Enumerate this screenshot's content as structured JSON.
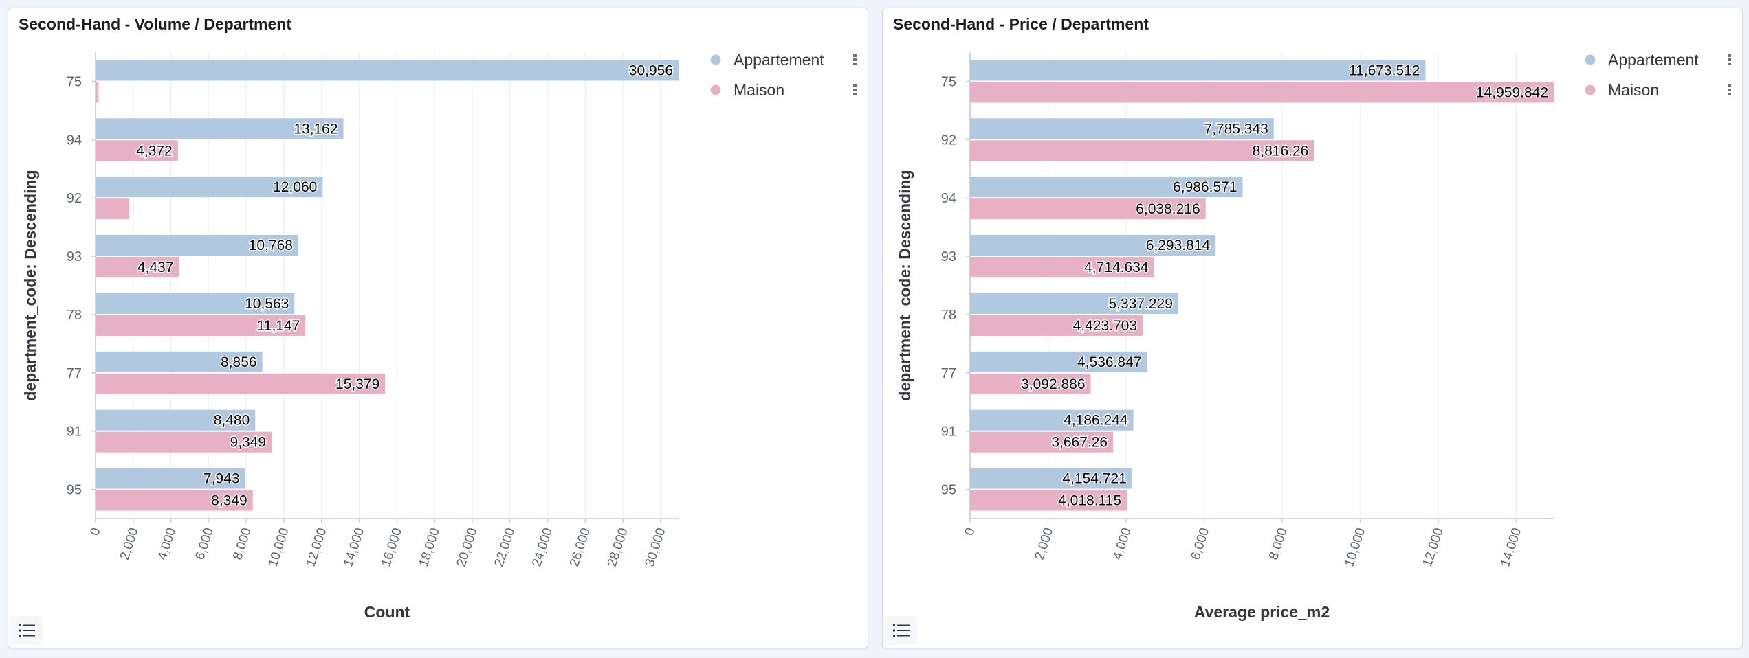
{
  "colors": {
    "appartement": "#b0c9e0",
    "maison": "#e7b0c5",
    "grid": "#eef0f3",
    "axis": "#c8ccd3",
    "tick_text": "#5f6672",
    "label_text": "#343741"
  },
  "icons": {
    "legend_toggle": "list-icon",
    "legend_menu": "vertical-dots-icon"
  },
  "charts": [
    {
      "panel_title": "Second-Hand - Volume / Department",
      "chart_data": {
        "type": "bar",
        "orientation": "horizontal",
        "title": "Second-Hand - Volume / Department",
        "xlabel": "Count",
        "ylabel": "department_code: Descending",
        "categories": [
          "75",
          "94",
          "92",
          "93",
          "78",
          "77",
          "91",
          "95"
        ],
        "series": [
          {
            "name": "Appartement",
            "color": "#b0c9e0",
            "values": [
              30956,
              13162,
              12060,
              10768,
              10563,
              8856,
              8480,
              7943
            ],
            "labels": [
              "30,956",
              "13,162",
              "12,060",
              "10,768",
              "10,563",
              "8,856",
              "8,480",
              "7,943"
            ]
          },
          {
            "name": "Maison",
            "color": "#e7b0c5",
            "values": [
              160,
              4372,
              1800,
              4437,
              11147,
              15379,
              9349,
              8349
            ],
            "labels": [
              "",
              "4,372",
              "",
              "4,437",
              "11,147",
              "15,379",
              "9,349",
              "8,349"
            ]
          }
        ],
        "xlim": [
          0,
          30956
        ],
        "xticks": [
          0,
          2000,
          4000,
          6000,
          8000,
          10000,
          12000,
          14000,
          16000,
          18000,
          20000,
          22000,
          24000,
          26000,
          28000,
          30000
        ],
        "xtick_labels": [
          "0",
          "2,000",
          "4,000",
          "6,000",
          "8,000",
          "10,000",
          "12,000",
          "14,000",
          "16,000",
          "18,000",
          "20,000",
          "22,000",
          "24,000",
          "26,000",
          "28,000",
          "30,000"
        ],
        "grid": true,
        "legend_position": "top-right"
      }
    },
    {
      "panel_title": "Second-Hand - Price / Department",
      "chart_data": {
        "type": "bar",
        "orientation": "horizontal",
        "title": "Second-Hand - Price / Department",
        "xlabel": "Average price_m2",
        "ylabel": "department_code: Descending",
        "categories": [
          "75",
          "92",
          "94",
          "93",
          "78",
          "77",
          "91",
          "95"
        ],
        "series": [
          {
            "name": "Appartement",
            "color": "#b0c9e0",
            "values": [
              11673.512,
              7785.343,
              6986.571,
              6293.814,
              5337.229,
              4536.847,
              4186.244,
              4154.721
            ],
            "labels": [
              "11,673.512",
              "7,785.343",
              "6,986.571",
              "6,293.814",
              "5,337.229",
              "4,536.847",
              "4,186.244",
              "4,154.721"
            ]
          },
          {
            "name": "Maison",
            "color": "#e7b0c5",
            "values": [
              14959.842,
              8816.26,
              6038.216,
              4714.634,
              4423.703,
              3092.886,
              3667.26,
              4018.115
            ],
            "labels": [
              "14,959.842",
              "8,816.26",
              "6,038.216",
              "4,714.634",
              "4,423.703",
              "3,092.886",
              "3,667.26",
              "4,018.115"
            ]
          }
        ],
        "xlim": [
          0,
          14959.842
        ],
        "xticks": [
          0,
          2000,
          4000,
          6000,
          8000,
          10000,
          12000,
          14000
        ],
        "xtick_labels": [
          "0",
          "2,000",
          "4,000",
          "6,000",
          "8,000",
          "10,000",
          "12,000",
          "14,000"
        ],
        "grid": true,
        "legend_position": "top-right"
      }
    }
  ]
}
